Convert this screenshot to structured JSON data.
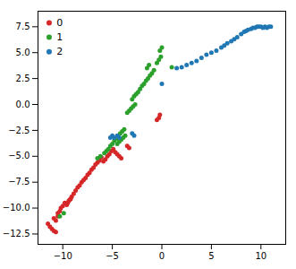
{
  "chart_data": {
    "type": "scatter",
    "series": [
      {
        "name": "0",
        "color": "#d62728",
        "x": [
          -11.5,
          -11.3,
          -11.1,
          -10.9,
          -10.7,
          -10.9,
          -10.7,
          -10.5,
          -10.5,
          -10.3,
          -10.2,
          -10.0,
          -9.8,
          -9.6,
          -9.4,
          -9.2,
          -9.5,
          -9.3,
          -9.1,
          -8.9,
          -8.7,
          -8.5,
          -8.3,
          -8.1,
          -7.9,
          -7.7,
          -7.5,
          -7.3,
          -7.1,
          -6.9,
          -6.7,
          -6.5,
          -6.3,
          -6.1,
          -5.9,
          -5.7,
          -5.5,
          -5.3,
          -5.1,
          -4.9,
          -4.7,
          -4.5,
          -4.3,
          -4.1,
          -3.5,
          -3.3,
          -0.5,
          -0.3,
          -0.2
        ],
        "values": [
          -11.5,
          -11.8,
          -12.0,
          -12.2,
          -12.3,
          -11.0,
          -11.2,
          -10.8,
          -10.5,
          -10.3,
          -10.0,
          -9.8,
          -9.5,
          -9.7,
          -9.3,
          -9.1,
          -9.5,
          -9.2,
          -8.9,
          -8.6,
          -8.3,
          -8.0,
          -7.8,
          -7.5,
          -7.3,
          -7.1,
          -6.8,
          -6.6,
          -6.3,
          -6.1,
          -5.8,
          -5.6,
          -5.4,
          -5.1,
          -5.5,
          -5.3,
          -5.0,
          -4.8,
          -4.5,
          -4.3,
          -4.6,
          -4.8,
          -5.0,
          -5.2,
          -4.0,
          -4.2,
          -1.5,
          -1.3,
          -1.0
        ]
      },
      {
        "name": "1",
        "color": "#2ca02c",
        "x": [
          -10.3,
          -9.9,
          -6.5,
          -6.2,
          -5.8,
          -5.6,
          -5.4,
          -5.2,
          -5.0,
          -4.8,
          -4.6,
          -4.4,
          -4.2,
          -4.0,
          -3.8,
          -4.5,
          -4.3,
          -4.1,
          -3.9,
          -3.7,
          -3.5,
          -3.3,
          -3.1,
          -2.9,
          -2.7,
          -3.0,
          -2.8,
          -2.6,
          -2.4,
          -2.2,
          -2.0,
          -1.8,
          -1.6,
          -1.4,
          -1.2,
          -1.0,
          -0.8,
          -1.5,
          -1.3,
          -0.5,
          -0.3,
          -0.1,
          -0.2,
          0.0,
          1.0
        ],
        "values": [
          -10.8,
          -10.5,
          -5.2,
          -5.0,
          -4.7,
          -4.5,
          -4.3,
          -4.0,
          -3.8,
          -3.5,
          -3.3,
          -3.1,
          -2.8,
          -2.6,
          -2.4,
          -3.8,
          -3.6,
          -3.4,
          -3.2,
          -3.0,
          -0.8,
          -0.6,
          -0.4,
          -0.2,
          0.0,
          0.5,
          0.8,
          1.0,
          1.2,
          1.5,
          1.8,
          2.0,
          2.3,
          2.5,
          2.8,
          3.0,
          3.3,
          3.5,
          3.8,
          4.0,
          4.3,
          4.6,
          5.2,
          5.5,
          3.6
        ]
      },
      {
        "name": "2",
        "color": "#1f77b4",
        "x": [
          -5.2,
          -5.0,
          -4.8,
          -4.5,
          -4.3,
          -3.0,
          -2.8,
          0.0,
          1.5,
          2.0,
          2.5,
          3.0,
          3.5,
          4.0,
          4.5,
          5.0,
          5.5,
          6.0,
          6.3,
          6.6,
          7.0,
          7.3,
          7.6,
          8.0,
          8.3,
          8.5,
          8.7,
          9.0,
          9.2,
          9.4,
          9.6,
          9.8,
          10.0,
          10.2,
          10.4,
          10.6,
          10.8,
          11.0
        ],
        "values": [
          -3.2,
          -3.0,
          -3.2,
          -3.0,
          -3.2,
          -2.8,
          -3.0,
          2.0,
          3.5,
          3.6,
          3.8,
          4.0,
          4.2,
          4.5,
          4.8,
          5.0,
          5.2,
          5.5,
          5.7,
          5.9,
          6.1,
          6.3,
          6.5,
          6.8,
          7.0,
          7.1,
          7.2,
          7.3,
          7.4,
          7.4,
          7.5,
          7.5,
          7.5,
          7.4,
          7.5,
          7.4,
          7.5,
          7.5
        ]
      }
    ],
    "xlim": [
      -12.5,
      12.5
    ],
    "ylim": [
      -13.5,
      9.0
    ],
    "xticks": [
      -10,
      -5,
      0,
      5,
      10
    ],
    "yticks": [
      {
        "value": -12.5,
        "label": "−12.5"
      },
      {
        "value": -10.0,
        "label": "−10.0"
      },
      {
        "value": -7.5,
        "label": "−7.5"
      },
      {
        "value": -5.0,
        "label": "−5.0"
      },
      {
        "value": -2.5,
        "label": "−2.5"
      },
      {
        "value": 0.0,
        "label": "0.0"
      },
      {
        "value": 2.5,
        "label": "2.5"
      },
      {
        "value": 5.0,
        "label": "5.0"
      },
      {
        "value": 7.5,
        "label": "7.5"
      }
    ],
    "legend": "upper left"
  }
}
